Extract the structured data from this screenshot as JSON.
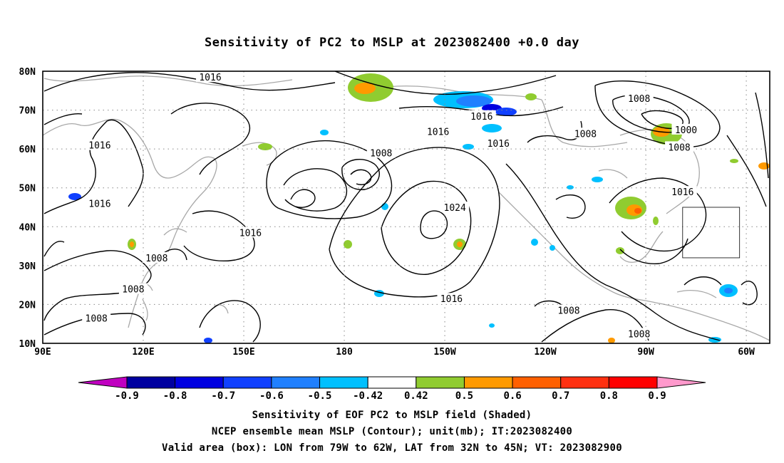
{
  "title": "Sensitivity of PC2 to MSLP at 2023082400 +0.0 day",
  "axes": {
    "lon_ticks": [
      "90E",
      "120E",
      "150E",
      "180",
      "150W",
      "120W",
      "90W",
      "60W"
    ],
    "lat_ticks": [
      "10N",
      "20N",
      "30N",
      "40N",
      "50N",
      "60N",
      "70N",
      "80N"
    ]
  },
  "colorbar": {
    "labels": [
      "-0.9",
      "-0.8",
      "-0.7",
      "-0.6",
      "-0.5",
      "-0.42",
      "0.42",
      "0.5",
      "0.6",
      "0.7",
      "0.8",
      "0.9"
    ],
    "colors": [
      "#c000c0",
      "#0000a0",
      "#0000e0",
      "#1040ff",
      "#2080ff",
      "#00c0ff",
      "#ffffff",
      "#90cc30",
      "#ff9a00",
      "#ff6000",
      "#ff3010",
      "#ff0000",
      "#ff99cc"
    ]
  },
  "contour_labels": [
    {
      "text": "1016",
      "lon": 140,
      "lat": 78.5
    },
    {
      "text": "1016",
      "lon": 107,
      "lat": 61
    },
    {
      "text": "1016",
      "lon": 107,
      "lat": 46
    },
    {
      "text": "1016",
      "lon": 152,
      "lat": 38.5
    },
    {
      "text": "1008",
      "lon": 124,
      "lat": 32
    },
    {
      "text": "1008",
      "lon": 117,
      "lat": 24
    },
    {
      "text": "1008",
      "lon": 106,
      "lat": 16.5
    },
    {
      "text": "1008",
      "lon": 191,
      "lat": 59
    },
    {
      "text": "1016",
      "lon": 208,
      "lat": 64.5
    },
    {
      "text": "1016",
      "lon": 226,
      "lat": 61.5
    },
    {
      "text": "1016",
      "lon": 221,
      "lat": 68.5
    },
    {
      "text": "1024",
      "lon": 213,
      "lat": 45
    },
    {
      "text": "1016",
      "lon": 212,
      "lat": 21.5
    },
    {
      "text": "1008",
      "lon": 252,
      "lat": 64
    },
    {
      "text": "1008",
      "lon": 247,
      "lat": 18.5
    },
    {
      "text": "1008",
      "lon": 268,
      "lat": 73
    },
    {
      "text": "1000",
      "lon": 282,
      "lat": 65
    },
    {
      "text": "1008",
      "lon": 280,
      "lat": 60.5
    },
    {
      "text": "1016",
      "lon": 281,
      "lat": 49
    },
    {
      "text": "1008",
      "lon": 268,
      "lat": 12.5
    }
  ],
  "valid_box": {
    "lon_min": 281,
    "lon_max": 298,
    "lat_min": 32,
    "lat_max": 45
  },
  "footer": {
    "line1": "Sensitivity of EOF PC2 to MSLP field (Shaded)",
    "line2": "NCEP ensemble mean MSLP (Contour); unit(mb); IT:2023082400",
    "line3": "Valid area (box): LON from 79W to 62W, LAT from 32N to 45N; VT: 2023082900"
  }
}
